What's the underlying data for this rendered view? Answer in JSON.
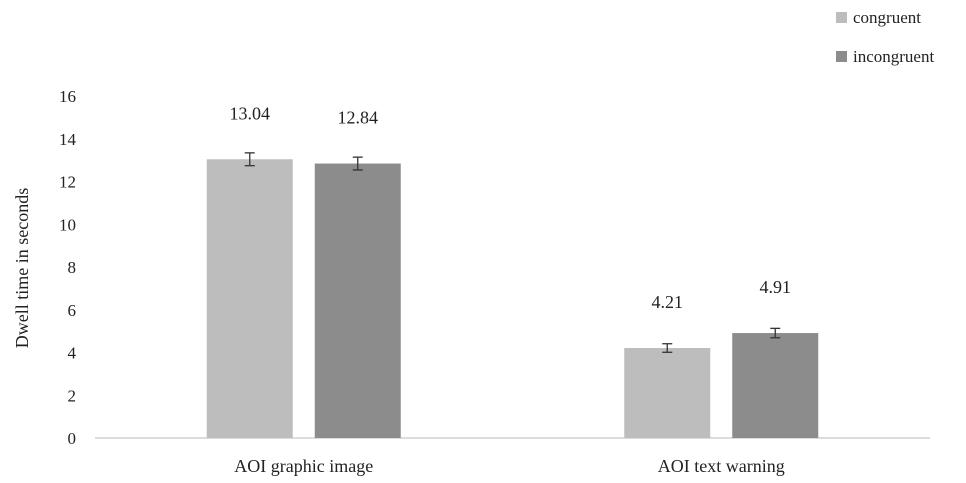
{
  "chart_data": {
    "type": "bar",
    "title": "",
    "xlabel": "",
    "ylabel": "Dwell time in seconds",
    "ylim": [
      0,
      16
    ],
    "yticks": [
      0,
      2,
      4,
      6,
      8,
      10,
      12,
      14,
      16
    ],
    "grid": false,
    "legend_position": "top-right",
    "categories": [
      "AOI graphic image",
      "AOI text warning"
    ],
    "series": [
      {
        "name": "congruent",
        "color": "#bdbdbd",
        "values": [
          13.04,
          4.21
        ],
        "labels": [
          "13.04",
          "4.21"
        ],
        "error": [
          0.3,
          0.2
        ]
      },
      {
        "name": "incongruent",
        "color": "#8c8c8c",
        "values": [
          12.84,
          4.91
        ],
        "labels": [
          "12.84",
          "4.91"
        ],
        "error": [
          0.3,
          0.22
        ]
      }
    ]
  }
}
